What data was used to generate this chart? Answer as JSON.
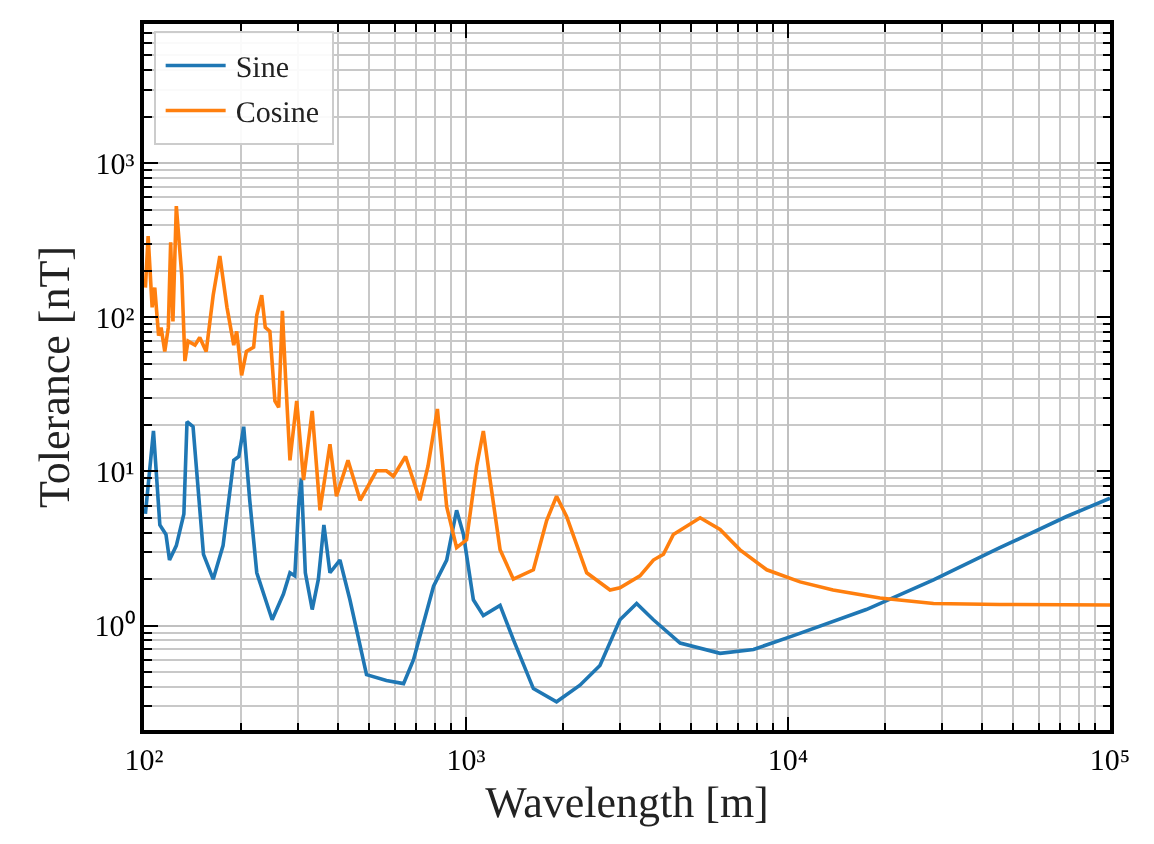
{
  "chart_data": {
    "type": "line",
    "xlabel": "Wavelength [m]",
    "ylabel": "Tolerance [nT]",
    "log": "xy",
    "grid": true,
    "legend": "top left",
    "line_style": "solid",
    "marker": "none",
    "xlim": [
      100,
      100000
    ],
    "ylim": [
      0.21,
      8000
    ],
    "xticks": [
      {
        "value": 100,
        "label": "10²"
      },
      {
        "value": 1000,
        "label": "10³"
      },
      {
        "value": 10000,
        "label": "10⁴"
      },
      {
        "value": 100000,
        "label": "10⁵"
      }
    ],
    "yticks": [
      {
        "value": 1,
        "label": "10⁰"
      },
      {
        "value": 10,
        "label": "10¹"
      },
      {
        "value": 100,
        "label": "10²"
      },
      {
        "value": 1000,
        "label": "10³"
      }
    ],
    "series": [
      {
        "name": "Sine",
        "color": "#1f77b4",
        "x": [
          101,
          107,
          112,
          117,
          120,
          126,
          133,
          136,
          142,
          153,
          164,
          176,
          190,
          197,
          204,
          213,
          224,
          250,
          271,
          284,
          294,
          302,
          308,
          317,
          333,
          348,
          362,
          378,
          406,
          436,
          491,
          566,
          640,
          687,
          793,
          871,
          935,
          982,
          1054,
          1132,
          1276,
          1403,
          1619,
          1911,
          2259,
          2606,
          3007,
          3388,
          3819,
          4624,
          6152,
          7811,
          10400,
          17500,
          28300,
          45500,
          73300,
          100000
        ],
        "values": [
          5.3,
          18.3,
          4.5,
          3.9,
          2.66,
          3.3,
          5.3,
          21,
          19.5,
          2.9,
          2.0,
          3.3,
          11.8,
          12.5,
          19.5,
          6.5,
          2.2,
          1.09,
          1.6,
          2.2,
          2.1,
          5.9,
          9,
          2.2,
          1.27,
          2.0,
          4.5,
          2.2,
          2.66,
          1.47,
          0.48,
          0.44,
          0.42,
          0.6,
          1.8,
          2.66,
          5.6,
          3.9,
          1.47,
          1.16,
          1.35,
          0.81,
          0.39,
          0.32,
          0.41,
          0.55,
          1.09,
          1.39,
          1.09,
          0.77,
          0.66,
          0.7,
          0.86,
          1.27,
          1.98,
          3.2,
          5.1,
          6.7
        ]
      },
      {
        "name": "Cosine",
        "color": "#ff7f0e",
        "x": [
          101,
          103,
          106,
          108,
          111,
          113,
          116,
          119,
          121,
          123,
          126,
          131,
          134,
          137,
          144,
          149,
          156,
          164,
          172,
          181,
          190,
          194,
          201,
          208,
          219,
          224,
          232,
          238,
          246,
          255,
          262,
          269,
          275,
          284,
          298,
          313,
          333,
          352,
          378,
          396,
          430,
          469,
          527,
          566,
          595,
          649,
          719,
          762,
          815,
          871,
          935,
          1004,
          1079,
          1132,
          1188,
          1276,
          1403,
          1619,
          1780,
          1911,
          2053,
          2371,
          2801,
          3007,
          3470,
          3819,
          4103,
          4406,
          5334,
          6152,
          7095,
          8590,
          10900,
          13800,
          19300,
          28300,
          45500,
          100000
        ],
        "values": [
          156,
          336,
          116,
          156,
          76,
          86,
          60,
          86,
          307,
          94,
          527,
          187,
          52,
          70,
          66,
          74,
          60,
          139,
          250,
          116,
          66,
          81,
          42,
          60,
          64,
          103,
          139,
          86,
          81,
          28.7,
          26,
          110,
          42,
          11.8,
          28.7,
          8.8,
          24.7,
          5.6,
          15,
          6.9,
          11.8,
          6.5,
          10.1,
          10.1,
          9.3,
          12.5,
          6.5,
          10.8,
          25.4,
          5.9,
          3.2,
          3.6,
          10.8,
          18.3,
          8.8,
          3.1,
          2.0,
          2.3,
          4.8,
          6.9,
          5.1,
          2.2,
          1.7,
          1.76,
          2.1,
          2.66,
          2.9,
          3.9,
          5.0,
          4.2,
          3.1,
          2.3,
          1.92,
          1.7,
          1.51,
          1.39,
          1.37,
          1.36
        ]
      }
    ]
  }
}
